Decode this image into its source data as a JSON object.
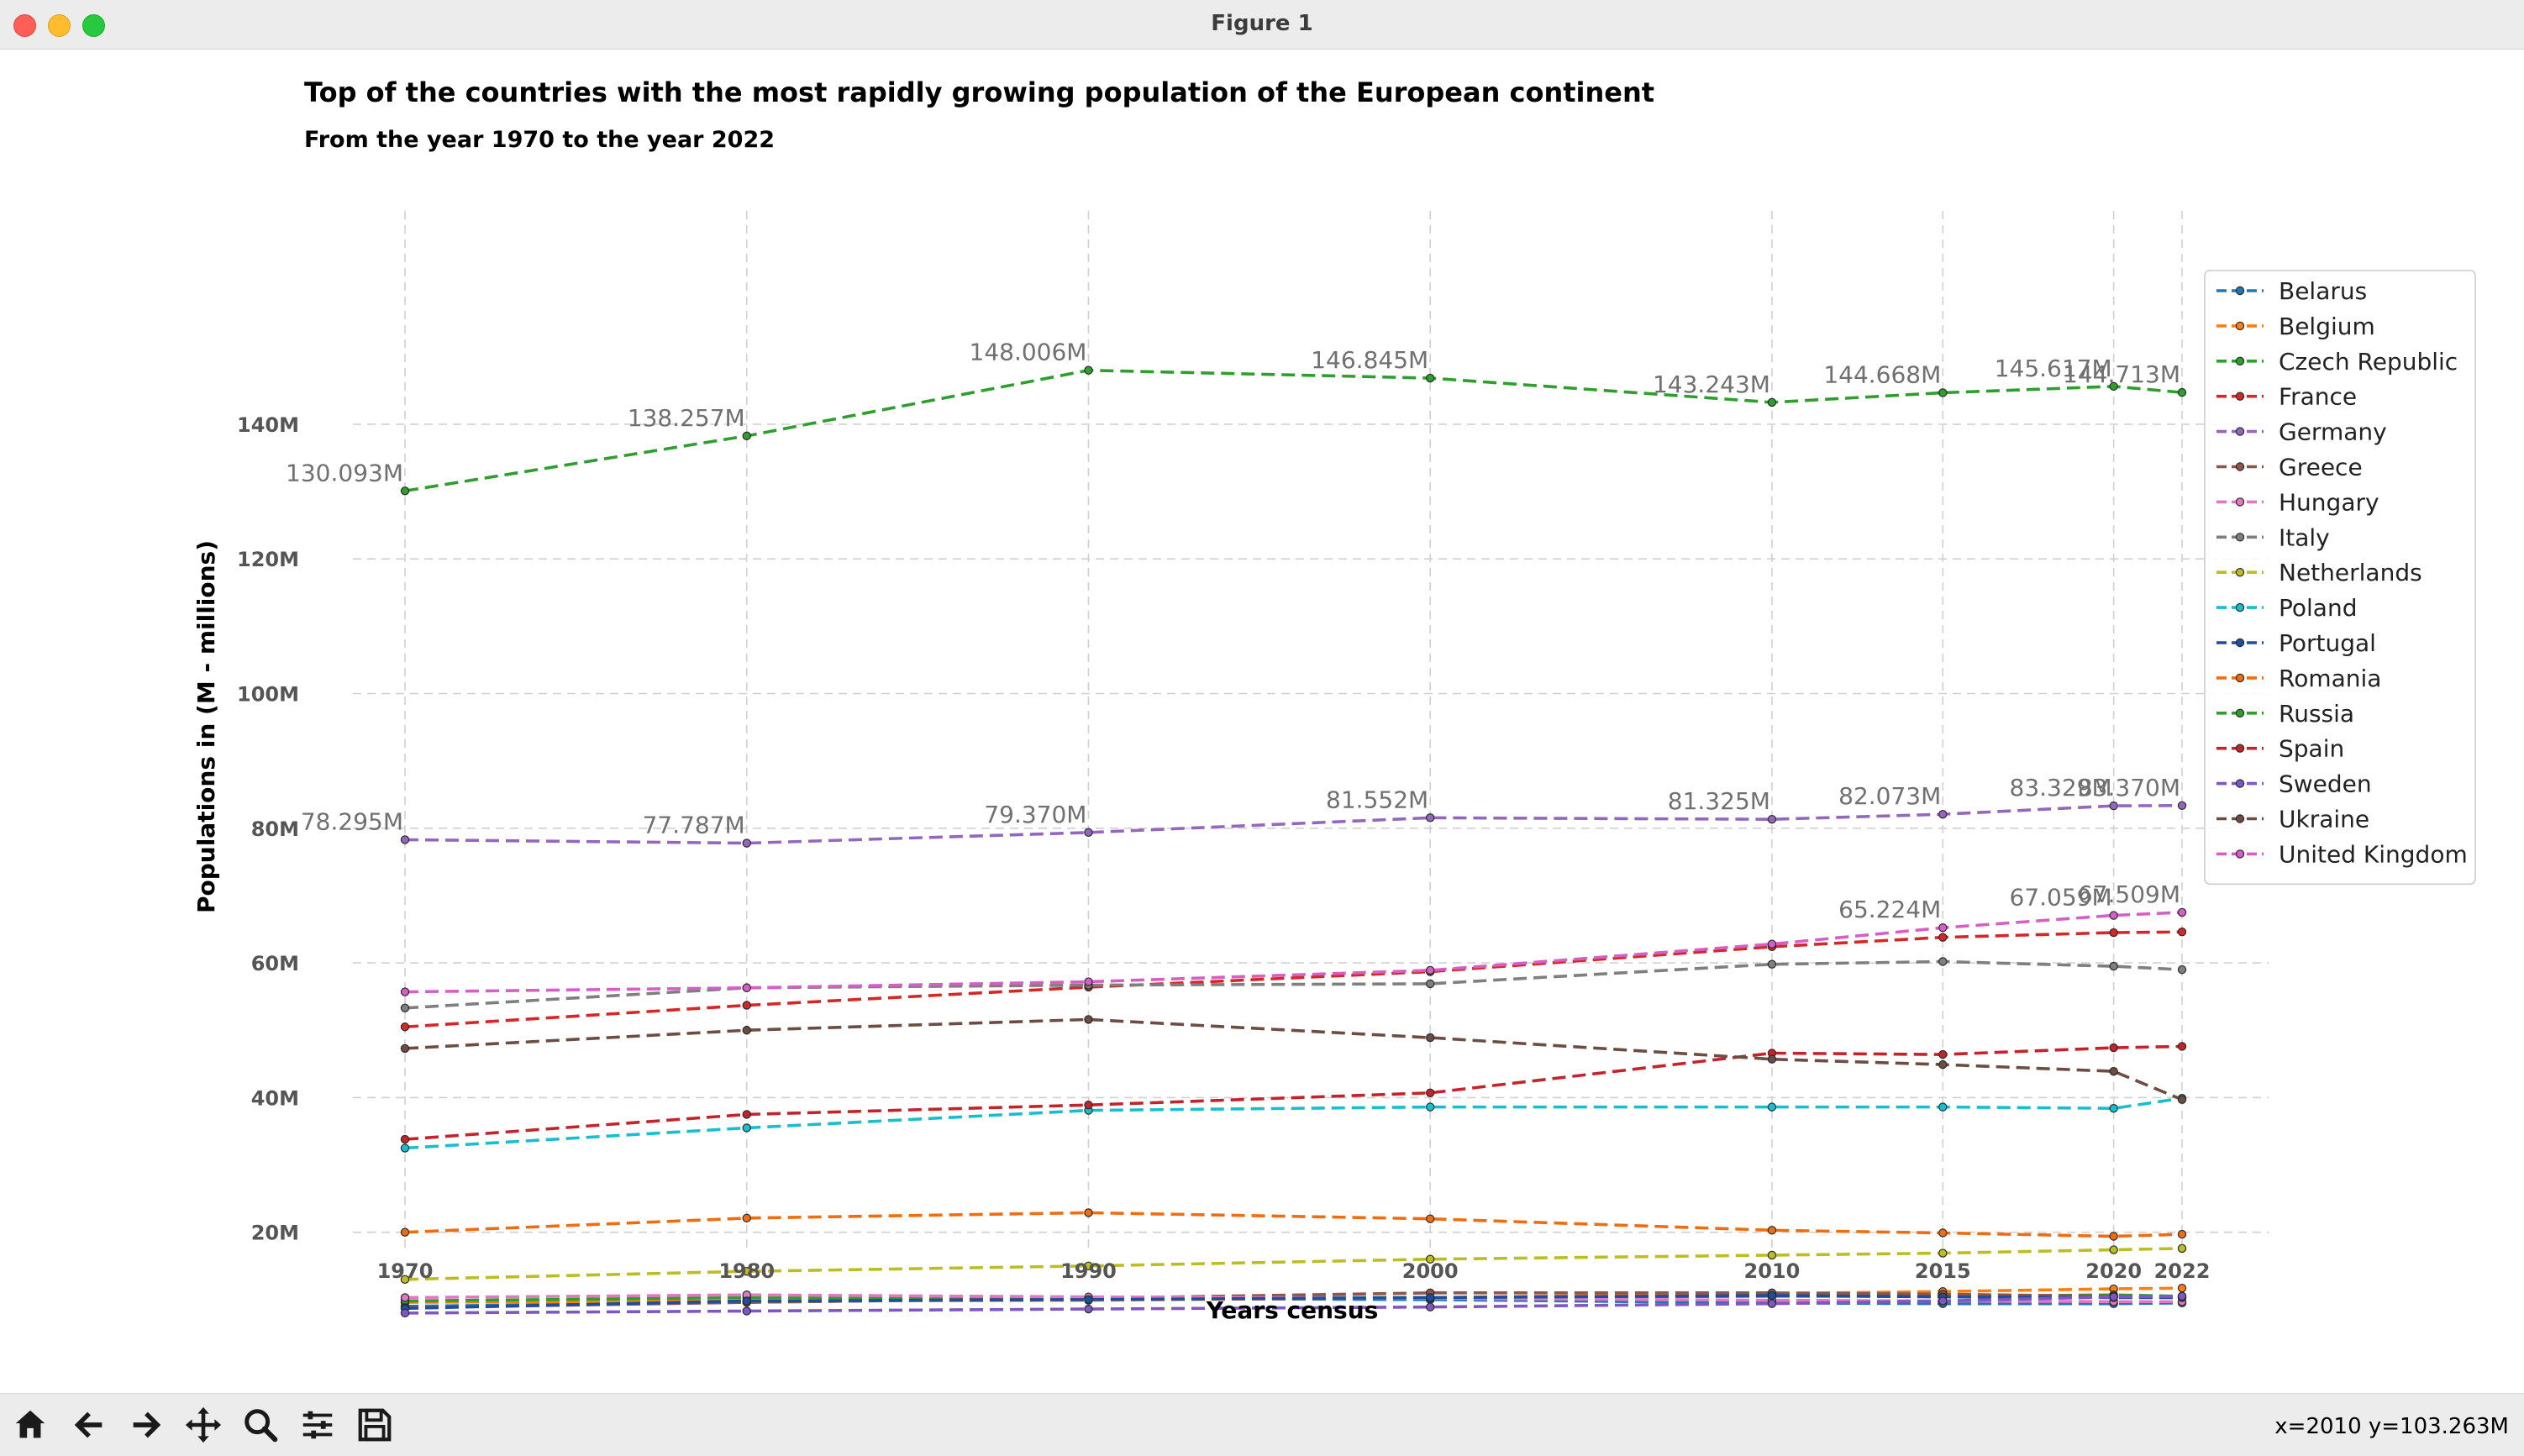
{
  "window": {
    "title": "Figure 1"
  },
  "toolbar": {
    "buttons": [
      {
        "name": "home-icon"
      },
      {
        "name": "back-arrow-icon"
      },
      {
        "name": "forward-arrow-icon"
      },
      {
        "name": "pan-move-icon"
      },
      {
        "name": "zoom-magnifier-icon"
      },
      {
        "name": "configure-subplots-icon"
      },
      {
        "name": "save-figure-icon"
      }
    ],
    "coords": "x=2010 y=103.263M"
  },
  "chart_data": {
    "type": "line",
    "title": "Top of the countries with the most rapidly growing population of the European continent",
    "subtitle": "From the year 1970 to the year 2022",
    "xlabel": "Years census",
    "ylabel": "Populations in (M - millions)",
    "x": [
      1970,
      1980,
      1990,
      2000,
      2010,
      2015,
      2020,
      2022
    ],
    "ylim": [
      0,
      155
    ],
    "yticks": [
      20,
      40,
      60,
      80,
      100,
      120,
      140
    ],
    "ytick_labels": [
      "20M",
      "40M",
      "60M",
      "80M",
      "100M",
      "120M",
      "140M"
    ],
    "grid": true,
    "legend_position": "right",
    "series": [
      {
        "name": "Belarus",
        "color": "#1f77b4",
        "values": [
          9.0,
          9.6,
          10.2,
          10.0,
          9.5,
          9.4,
          9.4,
          9.5
        ]
      },
      {
        "name": "Belgium",
        "color": "#ff7f0e",
        "values": [
          9.6,
          9.8,
          9.9,
          10.3,
          10.9,
          11.2,
          11.6,
          11.7
        ]
      },
      {
        "name": "Czech Republic",
        "color": "#2ca02c",
        "values": [
          9.8,
          10.3,
          10.3,
          10.3,
          10.5,
          10.5,
          10.7,
          10.5
        ]
      },
      {
        "name": "France",
        "color": "#d62728",
        "values": [
          50.5,
          53.7,
          56.4,
          58.7,
          62.4,
          63.8,
          64.5,
          64.6
        ]
      },
      {
        "name": "Germany",
        "color": "#9467bd",
        "values": [
          78.295,
          77.787,
          79.37,
          81.552,
          81.325,
          82.073,
          83.329,
          83.37
        ]
      },
      {
        "name": "Greece",
        "color": "#8c564b",
        "values": [
          8.8,
          9.6,
          10.2,
          11.0,
          11.0,
          10.8,
          10.5,
          10.4
        ]
      },
      {
        "name": "Hungary",
        "color": "#e377c2",
        "values": [
          10.3,
          10.7,
          10.4,
          10.2,
          9.9,
          9.8,
          9.7,
          9.7
        ]
      },
      {
        "name": "Italy",
        "color": "#7f7f7f",
        "values": [
          53.3,
          56.3,
          56.7,
          56.9,
          59.8,
          60.2,
          59.5,
          59.0
        ]
      },
      {
        "name": "Netherlands",
        "color": "#bcbd22",
        "values": [
          13.0,
          14.2,
          15.0,
          16.0,
          16.6,
          16.9,
          17.4,
          17.6
        ]
      },
      {
        "name": "Poland",
        "color": "#17becf",
        "values": [
          32.5,
          35.5,
          38.1,
          38.6,
          38.6,
          38.6,
          38.4,
          39.9
        ]
      },
      {
        "name": "Portugal",
        "color": "#1f4e9c",
        "values": [
          8.7,
          9.8,
          10.0,
          10.3,
          10.6,
          10.4,
          10.3,
          10.3
        ]
      },
      {
        "name": "Romania",
        "color": "#ef6c11",
        "values": [
          20.0,
          22.1,
          22.9,
          22.0,
          20.3,
          19.9,
          19.4,
          19.7
        ]
      },
      {
        "name": "Russia",
        "color": "#2f9e2f",
        "values": [
          130.093,
          138.257,
          148.006,
          146.845,
          143.243,
          144.668,
          145.617,
          144.713
        ]
      },
      {
        "name": "Spain",
        "color": "#c4232b",
        "values": [
          33.8,
          37.5,
          38.9,
          40.7,
          46.6,
          46.4,
          47.4,
          47.6
        ]
      },
      {
        "name": "Sweden",
        "color": "#7e57c2",
        "values": [
          8.0,
          8.3,
          8.6,
          8.9,
          9.4,
          9.8,
          10.4,
          10.5
        ]
      },
      {
        "name": "Ukraine",
        "color": "#6d4c41",
        "values": [
          47.3,
          50.0,
          51.6,
          48.9,
          45.7,
          44.9,
          43.9,
          39.7
        ]
      },
      {
        "name": "United Kingdom",
        "color": "#d65fc6",
        "values": [
          55.7,
          56.3,
          57.2,
          58.9,
          62.8,
          65.224,
          67.059,
          67.509
        ]
      }
    ],
    "annotations": [
      {
        "series": "Russia",
        "labels": [
          "130.093M",
          "138.257M",
          "148.006M",
          "146.845M",
          "143.243M",
          "144.668M",
          "145.617M",
          "144.713M"
        ]
      },
      {
        "series": "Germany",
        "labels": [
          "78.295M",
          "77.787M",
          "79.370M",
          "81.552M",
          "81.325M",
          "82.073M",
          "83.329M",
          "83.370M"
        ]
      },
      {
        "series": "United Kingdom",
        "labels": [
          "",
          "",
          "",
          "",
          "",
          "65.224M",
          "67.059M",
          "67.509M"
        ]
      }
    ]
  }
}
